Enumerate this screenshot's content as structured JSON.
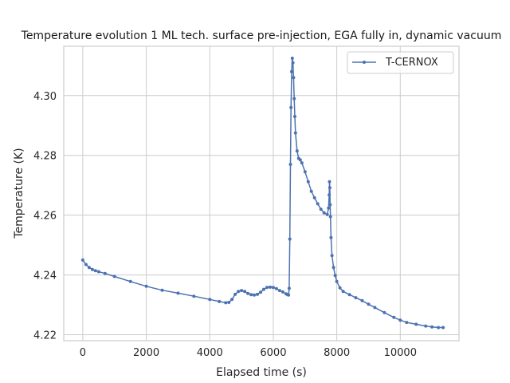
{
  "chart_data": {
    "type": "line",
    "title": "Temperature evolution 1 ML tech. surface pre-injection, EGA fully in, dynamic vacuum",
    "xlabel": "Elapsed time (s)",
    "ylabel": "Temperature (K)",
    "xlim": [
      -600,
      11850
    ],
    "ylim": [
      4.218,
      4.3165
    ],
    "x_ticks": [
      0,
      2000,
      4000,
      6000,
      8000,
      10000
    ],
    "y_ticks": [
      4.22,
      4.24,
      4.26,
      4.28,
      4.3
    ],
    "x_tick_labels": [
      "0",
      "2000",
      "4000",
      "6000",
      "8000",
      "10000"
    ],
    "y_tick_labels": [
      "4.22",
      "4.24",
      "4.26",
      "4.28",
      "4.30"
    ],
    "grid": true,
    "legend": {
      "position": "top-right"
    },
    "colors": {
      "series": "#4c72b0",
      "grid": "#cccccc",
      "frame": "#cccccc"
    },
    "series": [
      {
        "name": "T-CERNOX",
        "marker": "circle",
        "x": [
          0,
          100,
          200,
          300,
          400,
          500,
          700,
          1000,
          1500,
          2000,
          2500,
          3000,
          3500,
          4000,
          4300,
          4500,
          4600,
          4700,
          4800,
          4900,
          5000,
          5100,
          5200,
          5300,
          5400,
          5500,
          5600,
          5700,
          5800,
          5900,
          6000,
          6100,
          6200,
          6300,
          6400,
          6450,
          6480,
          6500,
          6520,
          6540,
          6560,
          6580,
          6600,
          6620,
          6640,
          6660,
          6680,
          6700,
          6750,
          6800,
          6850,
          6900,
          7000,
          7100,
          7200,
          7300,
          7400,
          7500,
          7600,
          7700,
          7740,
          7760,
          7770,
          7780,
          7790,
          7800,
          7820,
          7850,
          7900,
          7950,
          8000,
          8100,
          8200,
          8400,
          8600,
          8800,
          9000,
          9200,
          9500,
          9800,
          10000,
          10200,
          10500,
          10800,
          11000,
          11200,
          11350
        ],
        "y": [
          4.245,
          4.2435,
          4.2425,
          4.2418,
          4.2414,
          4.2411,
          4.2405,
          4.2395,
          4.2378,
          4.2362,
          4.2349,
          4.2339,
          4.2329,
          4.2318,
          4.2311,
          4.2307,
          4.2308,
          4.2318,
          4.2335,
          4.2345,
          4.2348,
          4.2345,
          4.2338,
          4.2334,
          4.2333,
          4.2335,
          4.2342,
          4.2352,
          4.2358,
          4.2359,
          4.2358,
          4.2354,
          4.2348,
          4.2343,
          4.2337,
          4.2334,
          4.2333,
          4.2355,
          4.252,
          4.277,
          4.296,
          4.308,
          4.3125,
          4.311,
          4.306,
          4.299,
          4.293,
          4.2875,
          4.2815,
          4.279,
          4.2785,
          4.2775,
          4.2745,
          4.2712,
          4.268,
          4.2658,
          4.2638,
          4.262,
          4.2608,
          4.2602,
          4.2624,
          4.2668,
          4.2712,
          4.2692,
          4.2635,
          4.2595,
          4.2525,
          4.2465,
          4.2425,
          4.2398,
          4.2378,
          4.2357,
          4.2345,
          4.2334,
          4.2324,
          4.2314,
          4.2302,
          4.2291,
          4.2274,
          4.2258,
          4.2249,
          4.2241,
          4.2235,
          4.2229,
          4.2226,
          4.2224,
          4.2224
        ]
      }
    ]
  }
}
